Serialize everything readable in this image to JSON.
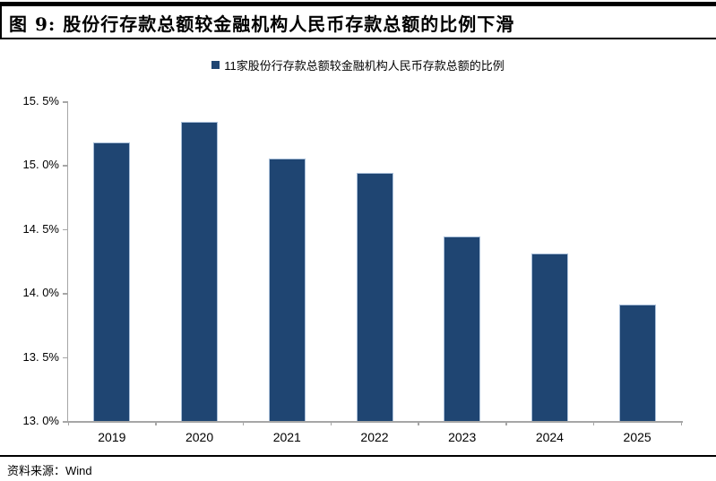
{
  "figure": {
    "title": "图 9:  股份行存款总额较金融机构人民币存款总额的比例下滑",
    "source_prefix": "资料来源：",
    "source_name": "Wind"
  },
  "chart_data": {
    "type": "bar",
    "title": "图 9: 股份行存款总额较金融机构人民币存款总额的比例下滑",
    "legend": [
      "11家股份行存款总额较金融机构人民币存款总额的比例"
    ],
    "legend_position": "top-center",
    "categories": [
      "2019",
      "2020",
      "2021",
      "2022",
      "2023",
      "2024",
      "2025"
    ],
    "series": [
      {
        "name": "11家股份行存款总额较金融机构人民币存款总额的比例",
        "values": [
          15.18,
          15.34,
          15.05,
          14.94,
          14.44,
          14.31,
          13.91
        ]
      }
    ],
    "xlabel": "",
    "ylabel": "",
    "ylim": [
      13.0,
      15.5
    ],
    "y_tick_step": 0.5,
    "y_tick_labels": [
      "15. 5%",
      "15. 0%",
      "14. 5%",
      "14. 0%",
      "13. 5%",
      "13. 0%"
    ],
    "grid": false,
    "bar_color": "#1F4572",
    "bar_border_color": "#A9BFD9",
    "axis_color": "#A6A6A6",
    "source": "资料来源：Wind"
  }
}
